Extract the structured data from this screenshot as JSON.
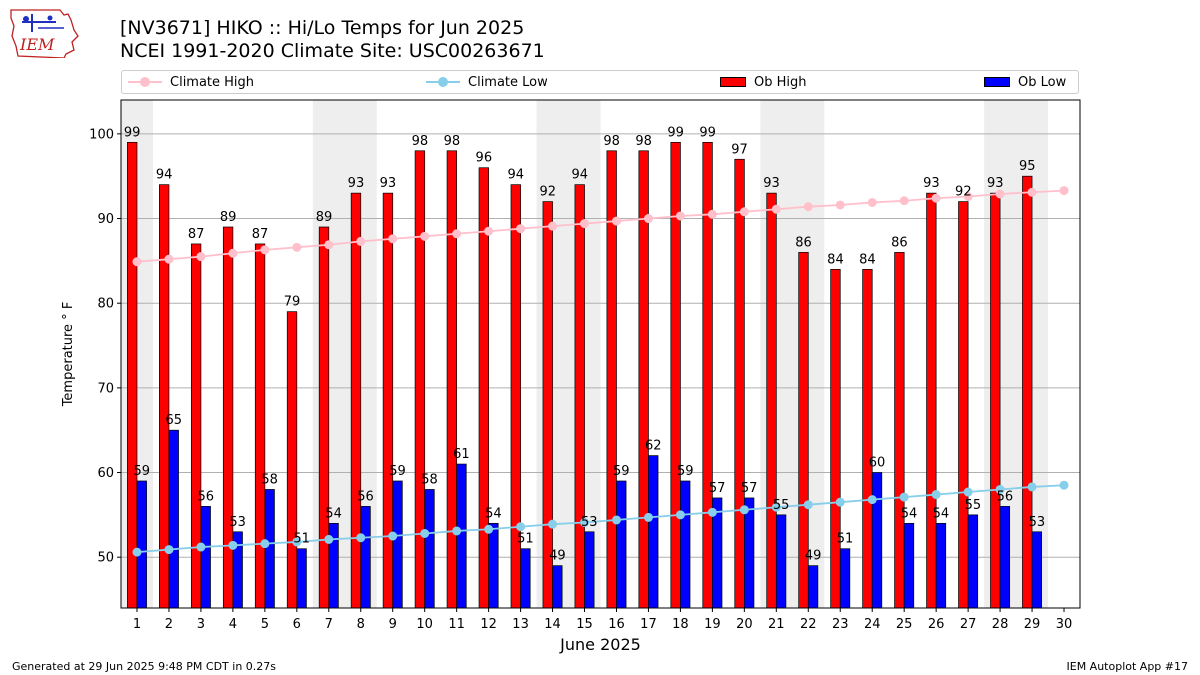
{
  "header": {
    "title_line1": "[NV3671] HIKO :: Hi/Lo Temps for Jun 2025",
    "title_line2": "NCEI 1991-2020 Climate Site: USC00263671"
  },
  "logo": {
    "text": "IEM"
  },
  "footer": {
    "left": "Generated at 29 Jun 2025 9:48 PM CDT in 0.27s",
    "right": "IEM Autoplot App #17"
  },
  "legend": {
    "items": [
      "Climate High",
      "Climate Low",
      "Ob High",
      "Ob Low"
    ]
  },
  "colors": {
    "ob_high": "#ff0000",
    "ob_low": "#0000ff",
    "climate_high": "#ffc0cb",
    "climate_low": "#87ceeb",
    "weekend_shade": "#eeeeee",
    "grid": "#b0b0b0"
  },
  "chart_data": {
    "type": "bar",
    "xlabel": "June 2025",
    "ylabel": "Temperature ° F",
    "ylim": [
      44,
      104
    ],
    "yticks": [
      50,
      60,
      70,
      80,
      90,
      100
    ],
    "grid": "horizontal",
    "legend_position": "top",
    "categories": [
      "1",
      "2",
      "3",
      "4",
      "5",
      "6",
      "7",
      "8",
      "9",
      "10",
      "11",
      "12",
      "13",
      "14",
      "15",
      "16",
      "17",
      "18",
      "19",
      "20",
      "21",
      "22",
      "23",
      "24",
      "25",
      "26",
      "27",
      "28",
      "29",
      "30"
    ],
    "shaded_day_ranges": [
      [
        1,
        1
      ],
      [
        7,
        8
      ],
      [
        14,
        15
      ],
      [
        21,
        22
      ],
      [
        28,
        29
      ]
    ],
    "series": [
      {
        "name": "Ob High",
        "type": "bar",
        "values": [
          99,
          94,
          87,
          89,
          87,
          79,
          89,
          93,
          93,
          98,
          98,
          96,
          94,
          92,
          94,
          98,
          98,
          99,
          99,
          97,
          93,
          86,
          84,
          84,
          86,
          93,
          92,
          93,
          95,
          null
        ]
      },
      {
        "name": "Ob Low",
        "type": "bar",
        "values": [
          59,
          65,
          56,
          53,
          58,
          51,
          54,
          56,
          59,
          58,
          61,
          54,
          51,
          49,
          53,
          59,
          62,
          59,
          57,
          57,
          55,
          49,
          51,
          60,
          54,
          54,
          55,
          56,
          53,
          null
        ]
      },
      {
        "name": "Climate High",
        "type": "line",
        "values": [
          84.9,
          85.2,
          85.5,
          85.9,
          86.3,
          86.6,
          86.9,
          87.3,
          87.6,
          87.9,
          88.2,
          88.5,
          88.8,
          89.1,
          89.4,
          89.7,
          90.0,
          90.3,
          90.5,
          90.8,
          91.1,
          91.4,
          91.6,
          91.9,
          92.1,
          92.4,
          92.6,
          92.9,
          93.1,
          93.3
        ]
      },
      {
        "name": "Climate Low",
        "type": "line",
        "values": [
          50.6,
          50.9,
          51.2,
          51.4,
          51.6,
          51.8,
          52.1,
          52.3,
          52.5,
          52.8,
          53.1,
          53.3,
          53.6,
          53.9,
          54.1,
          54.4,
          54.7,
          55.0,
          55.3,
          55.6,
          55.9,
          56.2,
          56.5,
          56.8,
          57.1,
          57.4,
          57.7,
          58.0,
          58.3,
          58.5
        ]
      }
    ]
  }
}
